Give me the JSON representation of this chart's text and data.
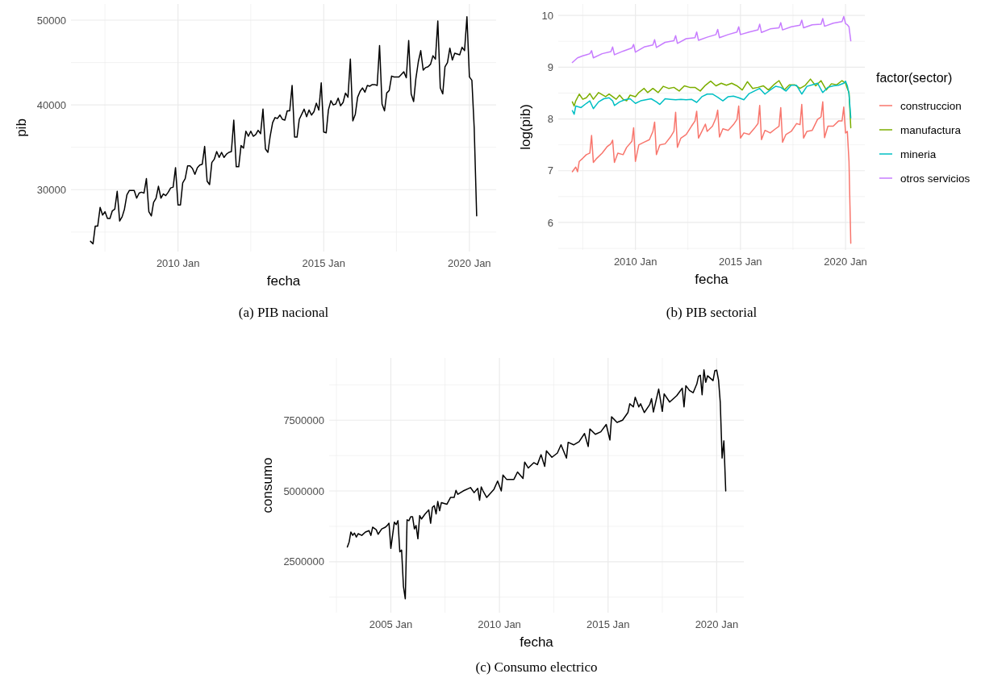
{
  "chart_data": [
    {
      "type": "line",
      "title": "(a) PIB nacional",
      "xlabel": "fecha",
      "ylabel": "pib",
      "color": "#000000",
      "grid": true,
      "xlim": [
        "2006-05",
        "2020-12"
      ],
      "ylim": [
        22700,
        51900
      ],
      "xticks": [
        {
          "value": "2007-07",
          "label": null
        },
        {
          "value": "2010-01",
          "label": "2010 Jan"
        },
        {
          "value": "2012-07",
          "label": null
        },
        {
          "value": "2015-01",
          "label": "2015 Jan"
        },
        {
          "value": "2017-07",
          "label": null
        },
        {
          "value": "2020-01",
          "label": "2020 Jan"
        }
      ],
      "yticks": [
        {
          "value": 25000,
          "label": null
        },
        30000,
        {
          "value": 35000,
          "label": null
        },
        40000,
        {
          "value": 45000,
          "label": null
        },
        50000
      ],
      "x": [
        "2007-01",
        "2007-02",
        "2007-03",
        "2007-04",
        "2007-05",
        "2007-06",
        "2007-07",
        "2007-08",
        "2007-09",
        "2007-10",
        "2007-11",
        "2007-12",
        "2008-01",
        "2008-02",
        "2008-03",
        "2008-04",
        "2008-05",
        "2008-07",
        "2008-08",
        "2008-09",
        "2008-10",
        "2008-11",
        "2008-12",
        "2009-01",
        "2009-02",
        "2009-03",
        "2009-04",
        "2009-05",
        "2009-06",
        "2009-07",
        "2009-08",
        "2009-09",
        "2009-10",
        "2009-11",
        "2009-12",
        "2010-01",
        "2010-02",
        "2010-03",
        "2010-04",
        "2010-05",
        "2010-06",
        "2010-07",
        "2010-08",
        "2010-09",
        "2010-10",
        "2010-11",
        "2010-12",
        "2011-01",
        "2011-02",
        "2011-03",
        "2011-04",
        "2011-05",
        "2011-06",
        "2011-07",
        "2011-08",
        "2011-09",
        "2011-10",
        "2011-11",
        "2011-12",
        "2012-01",
        "2012-02",
        "2012-03",
        "2012-04",
        "2012-05",
        "2012-06",
        "2012-07",
        "2012-08",
        "2012-09",
        "2012-10",
        "2012-11",
        "2012-12",
        "2013-01",
        "2013-02",
        "2013-03",
        "2013-04",
        "2013-05",
        "2013-06",
        "2013-07",
        "2013-08",
        "2013-09",
        "2013-10",
        "2013-11",
        "2013-12",
        "2014-01",
        "2014-02",
        "2014-03",
        "2014-04",
        "2014-05",
        "2014-06",
        "2014-07",
        "2014-08",
        "2014-09",
        "2014-10",
        "2014-11",
        "2014-12",
        "2015-01",
        "2015-02",
        "2015-03",
        "2015-04",
        "2015-05",
        "2015-06",
        "2015-07",
        "2015-08",
        "2015-09",
        "2015-10",
        "2015-11",
        "2015-12",
        "2016-01",
        "2016-02",
        "2016-03",
        "2016-04",
        "2016-05",
        "2016-06",
        "2016-07",
        "2016-08",
        "2016-09",
        "2016-10",
        "2016-11",
        "2016-12",
        "2017-01",
        "2017-02",
        "2017-03",
        "2017-04",
        "2017-05",
        "2017-06",
        "2017-07",
        "2017-08",
        "2017-09",
        "2017-10",
        "2017-11",
        "2017-12",
        "2018-01",
        "2018-02",
        "2018-03",
        "2018-04",
        "2018-05",
        "2018-06",
        "2018-07",
        "2018-08",
        "2018-09",
        "2018-10",
        "2018-11",
        "2018-12",
        "2019-01",
        "2019-02",
        "2019-03",
        "2019-04",
        "2019-05",
        "2019-06",
        "2019-07",
        "2019-08",
        "2019-09",
        "2019-10",
        "2019-11",
        "2019-12",
        "2020-01",
        "2020-02",
        "2020-03",
        "2020-04"
      ],
      "values": [
        23900,
        23600,
        25700,
        25700,
        27900,
        27000,
        27400,
        26600,
        26600,
        27500,
        27700,
        29800,
        26300,
        26800,
        27700,
        29400,
        29900,
        29900,
        29000,
        29600,
        29700,
        29600,
        31300,
        27400,
        26900,
        28500,
        29000,
        30400,
        29000,
        29500,
        29300,
        29700,
        30200,
        30300,
        32600,
        28200,
        28200,
        30800,
        31300,
        32800,
        32800,
        32500,
        31800,
        32600,
        32900,
        33000,
        35100,
        31000,
        30600,
        33200,
        33600,
        34500,
        33800,
        34400,
        33800,
        34200,
        34400,
        34500,
        38200,
        32700,
        32700,
        35200,
        34900,
        36900,
        36300,
        36900,
        36300,
        36500,
        37000,
        36600,
        39500,
        34800,
        34400,
        36300,
        37900,
        38500,
        38400,
        38800,
        38300,
        38200,
        39300,
        39300,
        42300,
        36200,
        36200,
        38300,
        38900,
        39500,
        38600,
        39400,
        38800,
        39200,
        40200,
        39400,
        42600,
        36800,
        36700,
        39400,
        40500,
        40000,
        40100,
        40800,
        39900,
        40300,
        41400,
        40900,
        45400,
        38100,
        38900,
        40900,
        41600,
        42000,
        41500,
        42300,
        42200,
        42400,
        42400,
        42300,
        47000,
        40100,
        39300,
        41400,
        41700,
        43400,
        43300,
        43300,
        43300,
        43600,
        43900,
        43200,
        47600,
        41300,
        40400,
        43100,
        45100,
        46400,
        44100,
        44400,
        44500,
        44800,
        45800,
        45400,
        49900,
        42000,
        41300,
        44500,
        45000,
        46700,
        45300,
        46100,
        46000,
        45900,
        46800,
        46400,
        50400,
        43300,
        42900,
        37300,
        26900
      ]
    },
    {
      "type": "line",
      "title": "(b) PIB sectorial",
      "xlabel": "fecha",
      "ylabel": "log(pib)",
      "grid": true,
      "legend": "right",
      "legend_title": "factor(sector)",
      "xlim": [
        "2006-05",
        "2020-12"
      ],
      "ylim": [
        5.47,
        10.22
      ],
      "xticks": [
        {
          "value": "2007-07",
          "label": null
        },
        {
          "value": "2010-01",
          "label": "2010 Jan"
        },
        {
          "value": "2012-07",
          "label": null
        },
        {
          "value": "2015-01",
          "label": "2015 Jan"
        },
        {
          "value": "2017-07",
          "label": null
        },
        {
          "value": "2020-01",
          "label": "2020 Jan"
        }
      ],
      "yticks": [
        {
          "value": 5.5,
          "label": null
        },
        6,
        {
          "value": 6.5,
          "label": null
        },
        7,
        {
          "value": 7.5,
          "label": null
        },
        8,
        {
          "value": 8.5,
          "label": null
        },
        9,
        {
          "value": 9.5,
          "label": null
        },
        10
      ],
      "series": [
        {
          "name": "construccion",
          "color": "#f8766d",
          "x": [
            "2007-01",
            "2007-03",
            "2007-04",
            "2007-05",
            "2007-07",
            "2007-09",
            "2007-11",
            "2007-12",
            "2008-01",
            "2008-03",
            "2008-06",
            "2008-09",
            "2008-11",
            "2008-12",
            "2009-01",
            "2009-03",
            "2009-06",
            "2009-08",
            "2009-11",
            "2009-12",
            "2010-01",
            "2010-03",
            "2010-06",
            "2010-09",
            "2010-11",
            "2010-12",
            "2011-01",
            "2011-03",
            "2011-06",
            "2011-09",
            "2011-11",
            "2011-12",
            "2012-01",
            "2012-03",
            "2012-06",
            "2012-09",
            "2012-11",
            "2012-12",
            "2013-01",
            "2013-03",
            "2013-05",
            "2013-06",
            "2013-09",
            "2013-11",
            "2013-12",
            "2014-01",
            "2014-03",
            "2014-06",
            "2014-09",
            "2014-11",
            "2014-12",
            "2015-01",
            "2015-03",
            "2015-06",
            "2015-09",
            "2015-11",
            "2015-12",
            "2016-01",
            "2016-03",
            "2016-06",
            "2016-09",
            "2016-11",
            "2016-12",
            "2017-01",
            "2017-03",
            "2017-06",
            "2017-09",
            "2017-11",
            "2017-12",
            "2018-01",
            "2018-03",
            "2018-06",
            "2018-09",
            "2018-11",
            "2018-12",
            "2019-01",
            "2019-03",
            "2019-06",
            "2019-09",
            "2019-11",
            "2019-12",
            "2020-01",
            "2020-02",
            "2020-03",
            "2020-04"
          ],
          "values": [
            6.98,
            7.07,
            6.98,
            7.18,
            7.24,
            7.31,
            7.34,
            7.68,
            7.16,
            7.24,
            7.34,
            7.47,
            7.52,
            7.59,
            7.16,
            7.34,
            7.31,
            7.45,
            7.57,
            7.83,
            7.18,
            7.5,
            7.55,
            7.6,
            7.76,
            7.94,
            7.31,
            7.5,
            7.52,
            7.65,
            7.76,
            8.13,
            7.45,
            7.63,
            7.7,
            7.86,
            7.96,
            8.15,
            7.63,
            7.76,
            7.9,
            7.76,
            7.86,
            8.02,
            8.17,
            7.65,
            7.81,
            7.78,
            7.89,
            7.99,
            8.25,
            7.63,
            7.73,
            7.7,
            7.82,
            7.91,
            8.26,
            7.6,
            7.78,
            7.73,
            7.81,
            7.86,
            8.22,
            7.55,
            7.7,
            7.76,
            7.91,
            7.89,
            8.28,
            7.63,
            7.76,
            7.78,
            7.99,
            8.04,
            8.33,
            7.64,
            7.86,
            7.86,
            7.96,
            7.96,
            8.23,
            7.73,
            7.76,
            7.18,
            5.6
          ]
        },
        {
          "name": "manufactura",
          "color": "#7cae00",
          "x": [
            "2007-01",
            "2007-02",
            "2007-03",
            "2007-05",
            "2007-07",
            "2007-09",
            "2007-11",
            "2008-01",
            "2008-04",
            "2008-06",
            "2008-08",
            "2008-10",
            "2008-12",
            "2009-02",
            "2009-04",
            "2009-06",
            "2009-08",
            "2009-10",
            "2010-01",
            "2010-03",
            "2010-06",
            "2010-08",
            "2010-11",
            "2011-02",
            "2011-05",
            "2011-08",
            "2011-11",
            "2012-02",
            "2012-05",
            "2012-08",
            "2012-11",
            "2013-02",
            "2013-05",
            "2013-08",
            "2013-11",
            "2014-02",
            "2014-05",
            "2014-08",
            "2014-11",
            "2015-02",
            "2015-05",
            "2015-08",
            "2015-11",
            "2016-02",
            "2016-05",
            "2016-08",
            "2016-11",
            "2017-02",
            "2017-05",
            "2017-08",
            "2017-11",
            "2018-02",
            "2018-05",
            "2018-08",
            "2018-11",
            "2019-02",
            "2019-05",
            "2019-08",
            "2019-11",
            "2020-01",
            "2020-02",
            "2020-03",
            "2020-04"
          ],
          "values": [
            8.33,
            8.25,
            8.35,
            8.48,
            8.38,
            8.41,
            8.49,
            8.38,
            8.51,
            8.47,
            8.43,
            8.48,
            8.43,
            8.38,
            8.46,
            8.38,
            8.35,
            8.46,
            8.43,
            8.51,
            8.59,
            8.51,
            8.59,
            8.51,
            8.63,
            8.59,
            8.61,
            8.54,
            8.64,
            8.61,
            8.61,
            8.54,
            8.65,
            8.73,
            8.64,
            8.69,
            8.65,
            8.69,
            8.64,
            8.56,
            8.72,
            8.59,
            8.61,
            8.64,
            8.56,
            8.66,
            8.74,
            8.56,
            8.66,
            8.66,
            8.59,
            8.65,
            8.77,
            8.64,
            8.74,
            8.56,
            8.68,
            8.66,
            8.74,
            8.69,
            8.59,
            8.51,
            7.83
          ]
        },
        {
          "name": "mineria",
          "color": "#00bfc4",
          "x": [
            "2007-01",
            "2007-02",
            "2007-03",
            "2007-06",
            "2007-09",
            "2007-11",
            "2008-01",
            "2008-04",
            "2008-07",
            "2008-10",
            "2008-12",
            "2009-01",
            "2009-04",
            "2009-07",
            "2009-10",
            "2010-01",
            "2010-04",
            "2010-07",
            "2010-10",
            "2011-01",
            "2011-03",
            "2011-06",
            "2011-09",
            "2011-12",
            "2012-03",
            "2012-06",
            "2012-09",
            "2012-12",
            "2013-03",
            "2013-06",
            "2013-09",
            "2013-12",
            "2014-03",
            "2014-06",
            "2014-09",
            "2014-12",
            "2015-03",
            "2015-06",
            "2015-09",
            "2015-12",
            "2016-03",
            "2016-06",
            "2016-09",
            "2016-12",
            "2017-03",
            "2017-06",
            "2017-09",
            "2017-12",
            "2018-03",
            "2018-06",
            "2018-09",
            "2018-12",
            "2019-03",
            "2019-06",
            "2019-09",
            "2019-12",
            "2020-01",
            "2020-02",
            "2020-03",
            "2020-04"
          ],
          "values": [
            8.16,
            8.09,
            8.25,
            8.22,
            8.3,
            8.35,
            8.2,
            8.33,
            8.39,
            8.41,
            8.35,
            8.26,
            8.33,
            8.37,
            8.39,
            8.3,
            8.35,
            8.37,
            8.39,
            8.33,
            8.28,
            8.39,
            8.38,
            8.37,
            8.38,
            8.37,
            8.38,
            8.32,
            8.43,
            8.48,
            8.48,
            8.42,
            8.35,
            8.43,
            8.44,
            8.41,
            8.37,
            8.49,
            8.54,
            8.59,
            8.48,
            8.56,
            8.63,
            8.61,
            8.54,
            8.65,
            8.65,
            8.48,
            8.63,
            8.66,
            8.69,
            8.51,
            8.61,
            8.64,
            8.65,
            8.69,
            8.73,
            8.64,
            8.48,
            8.02
          ]
        },
        {
          "name": "otros servicios",
          "color": "#c77cff",
          "x": [
            "2007-01",
            "2007-04",
            "2007-07",
            "2007-09",
            "2007-11",
            "2007-12",
            "2008-01",
            "2008-06",
            "2008-11",
            "2008-12",
            "2009-01",
            "2009-06",
            "2009-11",
            "2009-12",
            "2010-01",
            "2010-06",
            "2010-11",
            "2010-12",
            "2011-01",
            "2011-06",
            "2011-11",
            "2011-12",
            "2012-01",
            "2012-06",
            "2012-11",
            "2012-12",
            "2013-01",
            "2013-06",
            "2013-11",
            "2013-12",
            "2014-01",
            "2014-06",
            "2014-11",
            "2014-12",
            "2015-01",
            "2015-06",
            "2015-11",
            "2015-12",
            "2016-01",
            "2016-06",
            "2016-11",
            "2016-12",
            "2017-01",
            "2017-06",
            "2017-11",
            "2017-12",
            "2018-01",
            "2018-06",
            "2018-11",
            "2018-12",
            "2019-01",
            "2019-06",
            "2019-11",
            "2019-12",
            "2020-01",
            "2020-02",
            "2020-03",
            "2020-04"
          ],
          "values": [
            9.09,
            9.18,
            9.22,
            9.24,
            9.26,
            9.32,
            9.18,
            9.26,
            9.3,
            9.39,
            9.24,
            9.31,
            9.37,
            9.44,
            9.29,
            9.39,
            9.43,
            9.53,
            9.38,
            9.48,
            9.51,
            9.61,
            9.46,
            9.55,
            9.57,
            9.68,
            9.52,
            9.58,
            9.63,
            9.73,
            9.57,
            9.63,
            9.68,
            9.78,
            9.63,
            9.68,
            9.72,
            9.83,
            9.67,
            9.74,
            9.76,
            9.86,
            9.72,
            9.78,
            9.81,
            9.91,
            9.76,
            9.82,
            9.83,
            9.94,
            9.79,
            9.85,
            9.88,
            9.98,
            9.84,
            9.82,
            9.78,
            9.51
          ]
        }
      ]
    },
    {
      "type": "line",
      "title": "(c) Consumo electrico",
      "xlabel": "fecha",
      "ylabel": "consumo",
      "color": "#000000",
      "grid": true,
      "xlim": [
        "2002-03",
        "2021-04"
      ],
      "ylim": [
        700000,
        9700000
      ],
      "xticks": [
        {
          "value": "2002-07",
          "label": null
        },
        {
          "value": "2005-01",
          "label": "2005 Jan"
        },
        {
          "value": "2007-07",
          "label": null
        },
        {
          "value": "2010-01",
          "label": "2010 Jan"
        },
        {
          "value": "2012-07",
          "label": null
        },
        {
          "value": "2015-01",
          "label": "2015 Jan"
        },
        {
          "value": "2017-07",
          "label": null
        },
        {
          "value": "2020-01",
          "label": "2020 Jan"
        }
      ],
      "yticks": [
        {
          "value": 1250000,
          "label": null
        },
        2500000,
        {
          "value": 3750000,
          "label": null
        },
        5000000,
        {
          "value": 6250000,
          "label": null
        },
        7500000,
        {
          "value": 8750000,
          "label": null
        }
      ],
      "x": [
        "2003-01",
        "2003-02",
        "2003-03",
        "2003-04",
        "2003-05",
        "2003-06",
        "2003-07",
        "2003-09",
        "2003-11",
        "2004-01",
        "2004-02",
        "2004-03",
        "2004-05",
        "2004-06",
        "2004-08",
        "2004-10",
        "2004-11",
        "2004-12",
        "2005-01",
        "2005-03",
        "2005-04",
        "2005-05",
        "2005-06",
        "2005-07",
        "2005-08",
        "2005-09",
        "2005-10",
        "2005-11",
        "2005-12",
        "2006-01",
        "2006-02",
        "2006-03",
        "2006-04",
        "2006-05",
        "2006-06",
        "2006-08",
        "2006-10",
        "2006-11",
        "2006-12",
        "2007-01",
        "2007-02",
        "2007-03",
        "2007-04",
        "2007-05",
        "2007-08",
        "2007-10",
        "2007-12",
        "2008-01",
        "2008-02",
        "2008-05",
        "2008-09",
        "2008-11",
        "2009-01",
        "2009-02",
        "2009-03",
        "2009-04",
        "2009-06",
        "2009-10",
        "2009-12",
        "2010-02",
        "2010-03",
        "2010-05",
        "2010-09",
        "2010-11",
        "2011-02",
        "2011-03",
        "2011-05",
        "2011-08",
        "2011-10",
        "2011-12",
        "2012-02",
        "2012-03",
        "2012-06",
        "2012-09",
        "2012-11",
        "2013-02",
        "2013-03",
        "2013-06",
        "2013-09",
        "2013-12",
        "2014-02",
        "2014-03",
        "2014-06",
        "2014-09",
        "2014-12",
        "2015-02",
        "2015-03",
        "2015-06",
        "2015-09",
        "2015-12",
        "2016-01",
        "2016-03",
        "2016-04",
        "2016-06",
        "2016-07",
        "2016-09",
        "2016-12",
        "2017-01",
        "2017-02",
        "2017-05",
        "2017-07",
        "2017-08",
        "2017-11",
        "2018-03",
        "2018-06",
        "2018-07",
        "2018-08",
        "2018-10",
        "2018-12",
        "2019-02",
        "2019-03",
        "2019-04",
        "2019-05",
        "2019-06",
        "2019-07",
        "2019-08",
        "2019-11",
        "2019-12",
        "2020-01",
        "2020-02",
        "2020-03",
        "2020-04",
        "2020-05",
        "2020-06"
      ],
      "values": [
        3020000,
        3200000,
        3550000,
        3430000,
        3510000,
        3370000,
        3490000,
        3430000,
        3550000,
        3600000,
        3430000,
        3720000,
        3630000,
        3470000,
        3660000,
        3720000,
        3780000,
        3860000,
        2970000,
        3900000,
        3810000,
        3950000,
        2850000,
        2910000,
        1630000,
        1190000,
        3980000,
        3950000,
        4090000,
        4090000,
        3660000,
        3780000,
        3310000,
        4130000,
        4010000,
        4190000,
        4330000,
        3860000,
        4420000,
        4480000,
        4190000,
        4630000,
        4300000,
        4590000,
        4530000,
        4770000,
        4770000,
        5020000,
        4880000,
        5000000,
        5120000,
        4940000,
        5090000,
        4670000,
        5140000,
        5000000,
        4770000,
        5060000,
        5350000,
        5000000,
        5560000,
        5410000,
        5410000,
        5670000,
        5440000,
        6020000,
        5810000,
        6000000,
        5930000,
        6280000,
        5870000,
        6420000,
        6190000,
        6340000,
        6630000,
        6160000,
        6720000,
        6630000,
        6740000,
        7030000,
        6570000,
        7190000,
        7000000,
        7090000,
        7350000,
        6800000,
        7620000,
        7420000,
        7500000,
        7770000,
        8080000,
        7970000,
        8310000,
        7970000,
        8080000,
        7770000,
        8050000,
        8260000,
        7790000,
        8600000,
        7810000,
        8430000,
        8140000,
        8370000,
        8630000,
        7970000,
        8720000,
        8550000,
        8470000,
        8780000,
        9050000,
        9090000,
        8400000,
        9280000,
        8840000,
        9070000,
        8900000,
        9250000,
        9270000,
        8920000,
        8140000,
        6160000,
        6770000,
        5000000
      ]
    }
  ]
}
